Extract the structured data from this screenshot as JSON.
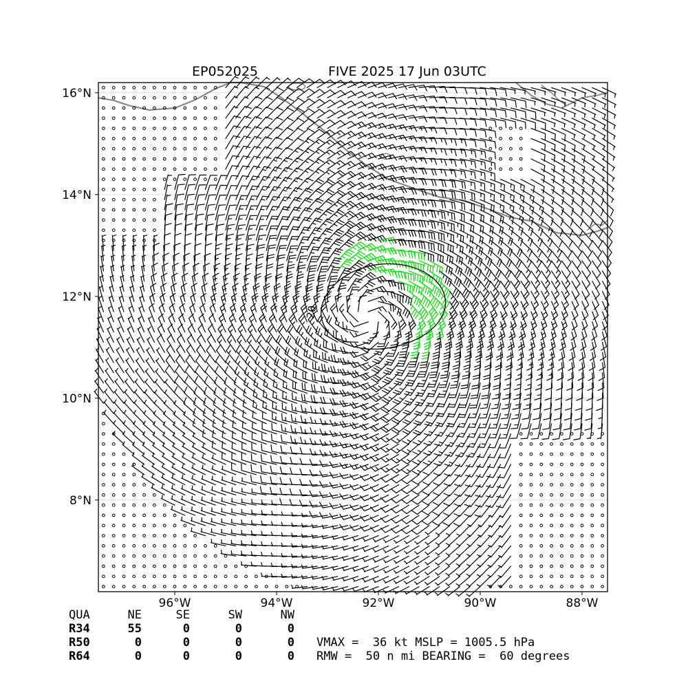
{
  "title": {
    "left": "EP052025",
    "right": "FIVE 2025 17 Jun 03UTC"
  },
  "map": {
    "lon_range": [
      -97.5,
      -87.5
    ],
    "lat_range": [
      6.2,
      16.2
    ],
    "lon_ticks": [
      {
        "value": -96,
        "label": "96°W"
      },
      {
        "value": -94,
        "label": "94°W"
      },
      {
        "value": -92,
        "label": "92°W"
      },
      {
        "value": -90,
        "label": "90°W"
      },
      {
        "value": -88,
        "label": "88°W"
      }
    ],
    "lat_ticks": [
      {
        "value": 8,
        "label": "8°N"
      },
      {
        "value": 10,
        "label": "10°N"
      },
      {
        "value": 12,
        "label": "12°N"
      },
      {
        "value": 14,
        "label": "14°N"
      },
      {
        "value": 16,
        "label": "16°N"
      }
    ],
    "grid": true,
    "contour_label": "20",
    "storm_center": {
      "lon": -92.2,
      "lat": 11.6
    },
    "colors": {
      "coast": "#888888",
      "barb_weak": "#000000",
      "barb_34kt": "#00dd00",
      "barb_50kt": "#e8a000",
      "grid": "#d8d8d8"
    }
  },
  "wind_radii_table": {
    "header": [
      "QUA",
      "NE",
      "SE",
      "SW",
      "NW"
    ],
    "rows": [
      {
        "label": "R34",
        "values": [
          "55",
          "0",
          "0",
          "0"
        ]
      },
      {
        "label": "R50",
        "values": [
          "0",
          "0",
          "0",
          "0"
        ]
      },
      {
        "label": "R64",
        "values": [
          "0",
          "0",
          "0",
          "0"
        ]
      }
    ]
  },
  "summary": {
    "line1": "VMAX =  36 kt MSLP = 1005.5 hPa",
    "line2": "RMW =  50 n mi BEARING =  60 degrees"
  }
}
